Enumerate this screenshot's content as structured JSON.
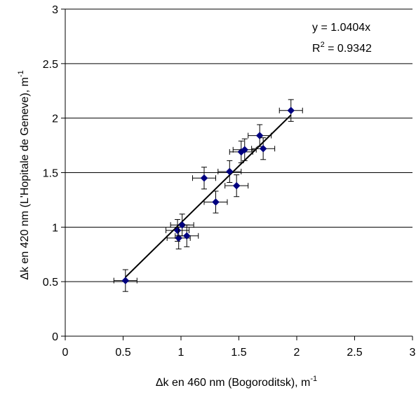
{
  "chart_data": {
    "type": "scatter",
    "xlabel_main": "Δk  en 460 nm (Bogoroditsk), m",
    "xlabel_sup": "-1",
    "ylabel_main": "Δk en 420 nm (L'Hopitale de Geneve), m",
    "ylabel_sup": "-1",
    "xlim": [
      0,
      3
    ],
    "ylim": [
      0,
      3
    ],
    "xticks": [
      0,
      0.5,
      1,
      1.5,
      2,
      2.5,
      3
    ],
    "yticks": [
      0,
      0.5,
      1,
      1.5,
      2,
      2.5,
      3
    ],
    "xtick_labels": [
      "0",
      "0.5",
      "1",
      "1.5",
      "2",
      "2.5",
      "3"
    ],
    "ytick_labels": [
      "0",
      "0.5",
      "1",
      "1.5",
      "2",
      "2.5",
      "3"
    ],
    "grid": "horizontal",
    "marker_color": "#000080",
    "error_x": 0.1,
    "error_y": 0.1,
    "points": [
      {
        "x": 0.52,
        "y": 0.51
      },
      {
        "x": 0.97,
        "y": 0.97
      },
      {
        "x": 0.98,
        "y": 0.9
      },
      {
        "x": 1.01,
        "y": 1.02
      },
      {
        "x": 1.05,
        "y": 0.92
      },
      {
        "x": 1.2,
        "y": 1.45
      },
      {
        "x": 1.3,
        "y": 1.23
      },
      {
        "x": 1.42,
        "y": 1.51
      },
      {
        "x": 1.48,
        "y": 1.38
      },
      {
        "x": 1.52,
        "y": 1.69
      },
      {
        "x": 1.55,
        "y": 1.71
      },
      {
        "x": 1.68,
        "y": 1.84
      },
      {
        "x": 1.71,
        "y": 1.72
      },
      {
        "x": 1.95,
        "y": 2.07
      }
    ],
    "trendline": {
      "slope": 1.0404,
      "x_range": [
        0.52,
        1.95
      ],
      "equation": "y = 1.0404x",
      "r2_main": "R",
      "r2_sup": "2",
      "r2_value": " = 0.9342"
    }
  }
}
